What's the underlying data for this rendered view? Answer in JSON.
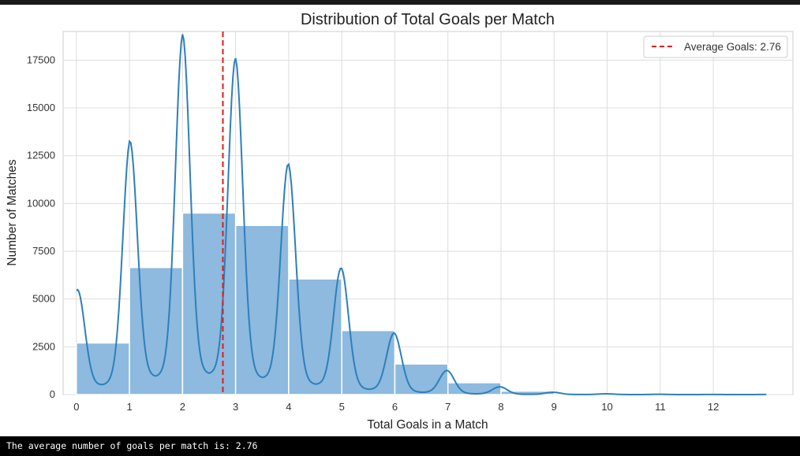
{
  "chart_data": {
    "type": "bar",
    "title": "Distribution of Total Goals per Match",
    "xlabel": "Total Goals in a Match",
    "ylabel": "Number of Matches",
    "x_ticks": [
      "0",
      "1",
      "2",
      "3",
      "4",
      "5",
      "6",
      "7",
      "8",
      "9",
      "10",
      "11",
      "12"
    ],
    "y_ticks": [
      "0",
      "2500",
      "5000",
      "7500",
      "10000",
      "12500",
      "15000",
      "17500"
    ],
    "xlim": [
      -0.25,
      13.5
    ],
    "ylim": [
      0,
      19000
    ],
    "grid": true,
    "bins": [
      {
        "x0": 0,
        "x1": 1,
        "value": 2700
      },
      {
        "x0": 1,
        "x1": 2,
        "value": 6650
      },
      {
        "x0": 2,
        "x1": 3,
        "value": 9500
      },
      {
        "x0": 3,
        "x1": 4,
        "value": 8850
      },
      {
        "x0": 4,
        "x1": 5,
        "value": 6050
      },
      {
        "x0": 5,
        "x1": 6,
        "value": 3350
      },
      {
        "x0": 6,
        "x1": 7,
        "value": 1600
      },
      {
        "x0": 7,
        "x1": 8,
        "value": 620
      },
      {
        "x0": 8,
        "x1": 9,
        "value": 180
      },
      {
        "x0": 9,
        "x1": 10,
        "value": 60
      },
      {
        "x0": 10,
        "x1": 11,
        "value": 25
      },
      {
        "x0": 11,
        "x1": 12,
        "value": 10
      },
      {
        "x0": 12,
        "x1": 13,
        "value": 5
      }
    ],
    "kde_peaks": [
      {
        "x": 0,
        "y": 5450
      },
      {
        "x": 1,
        "y": 13250
      },
      {
        "x": 2,
        "y": 18850
      },
      {
        "x": 3,
        "y": 17600
      },
      {
        "x": 4,
        "y": 12050
      },
      {
        "x": 5,
        "y": 6600
      },
      {
        "x": 6,
        "y": 3200
      },
      {
        "x": 7,
        "y": 1250
      },
      {
        "x": 8,
        "y": 400
      },
      {
        "x": 9,
        "y": 120
      },
      {
        "x": 10,
        "y": 40
      },
      {
        "x": 11,
        "y": 15
      },
      {
        "x": 12,
        "y": 6
      }
    ],
    "average_line": {
      "x": 2.76,
      "label": "Average Goals: 2.76"
    },
    "legend_position": "top-right",
    "colors": {
      "bar_fill": "#8dbade",
      "kde_line": "#2e7fbb",
      "average_line": "#e41a1c",
      "grid": "#dddddd"
    }
  },
  "console": {
    "text": "The average number of goals per match is: 2.76"
  }
}
